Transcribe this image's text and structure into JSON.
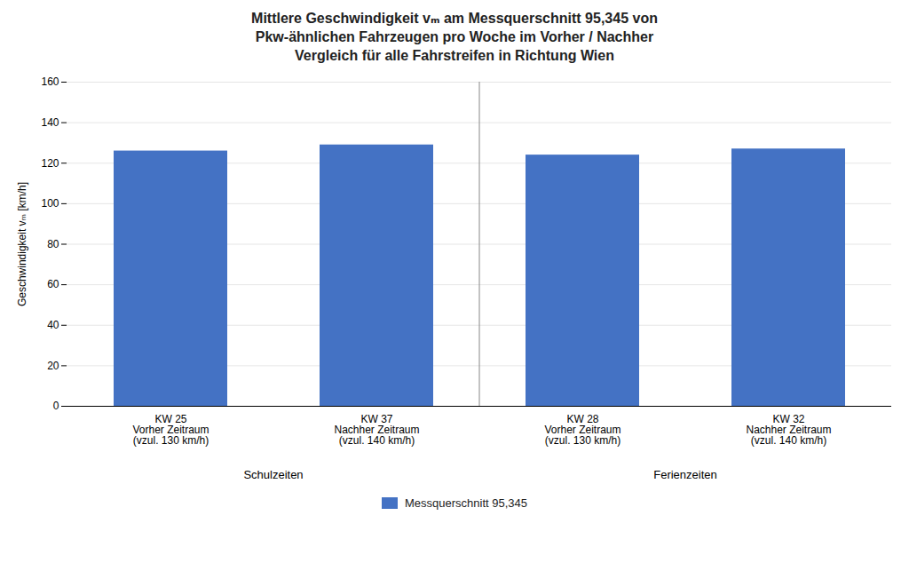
{
  "chart_data": {
    "type": "bar",
    "title": "Mittlere Geschwindigkeit vₘ am Messquerschnitt 95,345 von\nPkw-ähnlichen Fahrzeugen pro Woche im Vorher / Nachher\nVergleich für alle Fahrstreifen in Richtung Wien",
    "y_label": "Geschwindigkeit vₘ [km/h]",
    "categories": [
      "KW 25\nVorher Zeitraum\n(vzul. 130 km/h)",
      "KW 37\nNachher Zeitraum\n(vzul. 140 km/h)",
      "KW 28\nVorher Zeitraum\n(vzul. 130 km/h)",
      "KW 32\nNachher Zeitraum\n(vzul. 140 km/h)"
    ],
    "groups": [
      "Schulzeiten",
      "Schulzeiten",
      "Ferienzeiten",
      "Ferienzeiten"
    ],
    "series": [
      {
        "name": "Messquerschnitt 95,345",
        "color": "#4472C4",
        "values": [
          126,
          129,
          124,
          127
        ]
      }
    ],
    "ylim": [
      0,
      160
    ],
    "yticks": [
      0,
      20,
      40,
      60,
      80,
      100,
      120,
      140,
      160
    ],
    "grid": true,
    "legend": "bottom"
  }
}
